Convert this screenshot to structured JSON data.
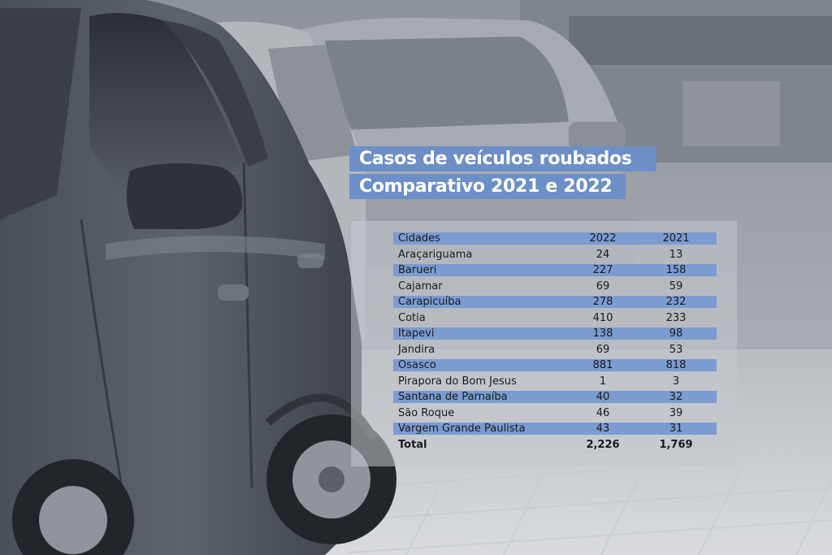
{
  "chart_data": {
    "type": "table",
    "title_lines": [
      "Casos de veículos roubados",
      "Comparativo 2021 e 2022"
    ],
    "columns": [
      "Cidades",
      "2022",
      "2021"
    ],
    "rows": [
      {
        "city": "Araçariguama",
        "v2022": "24",
        "v2021": "13"
      },
      {
        "city": "Barueri",
        "v2022": "227",
        "v2021": "158"
      },
      {
        "city": "Cajamar",
        "v2022": "69",
        "v2021": "59"
      },
      {
        "city": "Carapicuíba",
        "v2022": "278",
        "v2021": "232"
      },
      {
        "city": "Cotia",
        "v2022": "410",
        "v2021": "233"
      },
      {
        "city": "Itapevi",
        "v2022": "138",
        "v2021": "98"
      },
      {
        "city": "Jandira",
        "v2022": "69",
        "v2021": "53"
      },
      {
        "city": "Osasco",
        "v2022": "881",
        "v2021": "818"
      },
      {
        "city": "Pirapora do Bom Jesus",
        "v2022": "1",
        "v2021": "3"
      },
      {
        "city": "Santana de Parnaíba",
        "v2022": "40",
        "v2021": "32"
      },
      {
        "city": "São Roque",
        "v2022": "46",
        "v2021": "39"
      },
      {
        "city": "Vargem Grande Paulista",
        "v2022": "43",
        "v2021": "31"
      }
    ],
    "total": {
      "label": "Total",
      "v2022": "2,226",
      "v2021": "1,769"
    }
  },
  "colors": {
    "title_band": "#6d8fc7",
    "row_band": "#7b9bd1",
    "text": "#1a1a1a"
  }
}
